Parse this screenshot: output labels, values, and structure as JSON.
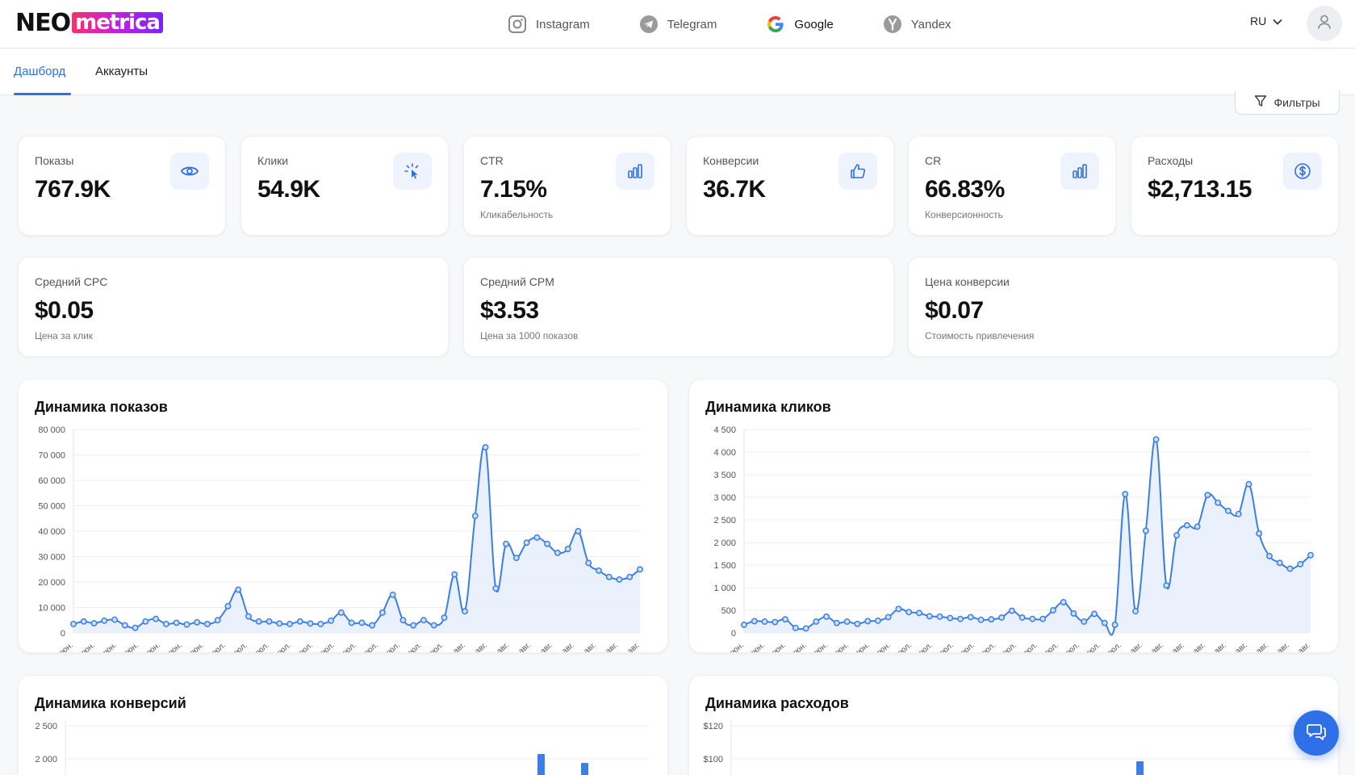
{
  "header": {
    "logo_left": "NEO",
    "logo_right": "metrica",
    "platforms": [
      {
        "name": "Instagram",
        "icon": "instagram-icon"
      },
      {
        "name": "Telegram",
        "icon": "telegram-icon"
      },
      {
        "name": "Google",
        "icon": "google-icon"
      },
      {
        "name": "Yandex",
        "icon": "yandex-icon"
      }
    ],
    "language": "RU"
  },
  "tabs": [
    {
      "label": "Дашборд",
      "active": true
    },
    {
      "label": "Аккаунты",
      "active": false
    }
  ],
  "filters_label": "Фильтры",
  "kpis": [
    {
      "label": "Показы",
      "value": "767.9K",
      "sub": "",
      "icon": "eye-icon"
    },
    {
      "label": "Клики",
      "value": "54.9K",
      "sub": "",
      "icon": "cursor-click-icon"
    },
    {
      "label": "CTR",
      "value": "7.15%",
      "sub": "Кликабельность",
      "icon": "bar-chart-icon"
    },
    {
      "label": "Конверсии",
      "value": "36.7K",
      "sub": "",
      "icon": "thumbs-up-icon"
    },
    {
      "label": "CR",
      "value": "66.83%",
      "sub": "Конверсионность",
      "icon": "bar-chart-icon"
    },
    {
      "label": "Расходы",
      "value": "$2,713.15",
      "sub": "",
      "icon": "dollar-icon"
    }
  ],
  "metrics": [
    {
      "label": "Средний CPC",
      "value": "$0.05",
      "sub": "Цена за клик"
    },
    {
      "label": "Средний CPM",
      "value": "$3.53",
      "sub": "Цена за 1000 показов"
    },
    {
      "label": "Цена конверсии",
      "value": "$0.07",
      "sub": "Стоимость привлечения"
    }
  ],
  "colors": {
    "accent": "#2f6fe8",
    "line": "#3b7fe6",
    "fill": "#e6effc"
  },
  "chart_data": [
    {
      "type": "line",
      "title": "Динамика показов",
      "ylim": [
        0,
        80000
      ],
      "yticks": [
        "0",
        "10 000",
        "20 000",
        "30 000",
        "40 000",
        "50 000",
        "60 000",
        "70 000",
        "80 000"
      ],
      "x_label_words": [
        "июн.",
        "июн.",
        "июн.",
        "июн.",
        "июн.",
        "июн.",
        "июн.",
        "июл.",
        "июл.",
        "июл.",
        "июл.",
        "июл.",
        "июл.",
        "июл.",
        "июл.",
        "июл.",
        "июл.",
        "июл.",
        "авг.",
        "авг.",
        "авг.",
        "авг.",
        "авг.",
        "авг.",
        "авг.",
        "авг.",
        "авг."
      ],
      "values": [
        3500,
        4500,
        3800,
        4800,
        5200,
        3000,
        2000,
        4500,
        5500,
        3500,
        4000,
        3300,
        4200,
        3500,
        5000,
        10500,
        17000,
        6500,
        4500,
        4500,
        3700,
        3500,
        4500,
        3700,
        3500,
        4800,
        8000,
        4000,
        4000,
        3000,
        8000,
        15000,
        5000,
        3000,
        5000,
        3000,
        6000,
        23000,
        8500,
        46000,
        73000,
        17500,
        35000,
        29500,
        35500,
        37500,
        35000,
        31500,
        33000,
        40000,
        27500,
        24500,
        22000,
        21000,
        22000,
        25000
      ]
    },
    {
      "type": "line",
      "title": "Динамика кликов",
      "ylim": [
        0,
        4500
      ],
      "yticks": [
        "0",
        "500",
        "1 000",
        "1 500",
        "2 000",
        "2 500",
        "3 000",
        "3 500",
        "4 000",
        "4 500"
      ],
      "x_label_words": [
        "июн.",
        "июн.",
        "июн.",
        "июн.",
        "июн.",
        "июн.",
        "июн.",
        "июн.",
        "июл.",
        "июл.",
        "июл.",
        "июл.",
        "июл.",
        "июл.",
        "июл.",
        "июл.",
        "июл.",
        "июл.",
        "июл.",
        "авг.",
        "авг.",
        "авг.",
        "авг.",
        "авг.",
        "авг.",
        "авг.",
        "авг.",
        "авг."
      ],
      "values": [
        180,
        260,
        250,
        240,
        300,
        110,
        100,
        250,
        360,
        220,
        250,
        200,
        260,
        270,
        350,
        530,
        460,
        440,
        370,
        360,
        330,
        310,
        350,
        290,
        300,
        340,
        490,
        340,
        310,
        310,
        500,
        680,
        430,
        250,
        420,
        220,
        180,
        3070,
        480,
        2260,
        4280,
        1050,
        2160,
        2380,
        2350,
        3050,
        2880,
        2700,
        2630,
        3290,
        2200,
        1700,
        1550,
        1420,
        1520,
        1720
      ]
    },
    {
      "type": "bar",
      "title": "Динамика конверсий",
      "yticks": [
        "2 500",
        "2 000"
      ]
    },
    {
      "type": "bar",
      "title": "Динамика расходов",
      "yticks": [
        "$120",
        "$100"
      ]
    }
  ]
}
